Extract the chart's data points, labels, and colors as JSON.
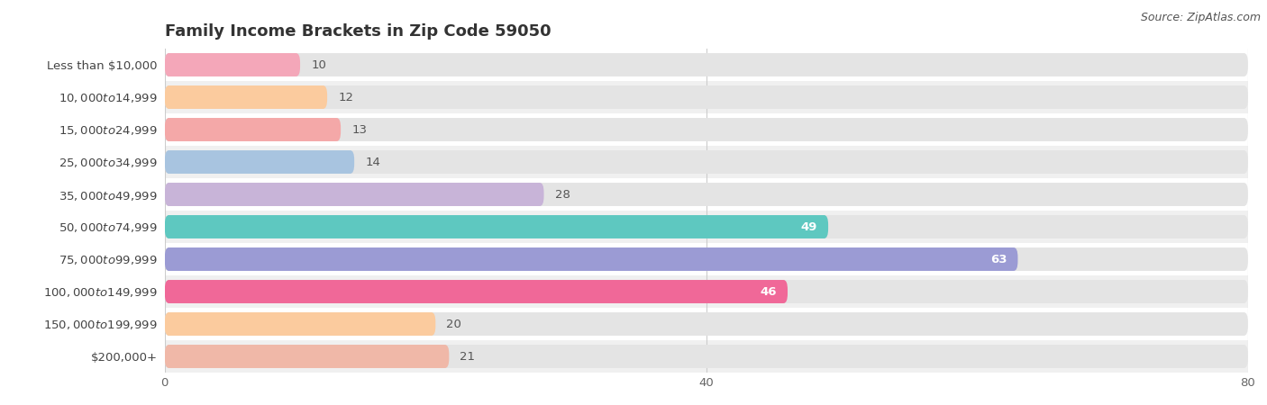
{
  "title": "Family Income Brackets in Zip Code 59050",
  "source": "Source: ZipAtlas.com",
  "categories": [
    "Less than $10,000",
    "$10,000 to $14,999",
    "$15,000 to $24,999",
    "$25,000 to $34,999",
    "$35,000 to $49,999",
    "$50,000 to $74,999",
    "$75,000 to $99,999",
    "$100,000 to $149,999",
    "$150,000 to $199,999",
    "$200,000+"
  ],
  "values": [
    10,
    12,
    13,
    14,
    28,
    49,
    63,
    46,
    20,
    21
  ],
  "bar_colors": [
    "#F4A7B9",
    "#FBCB9E",
    "#F4A8A8",
    "#A8C4E0",
    "#C8B4D8",
    "#5EC8C0",
    "#9B9BD4",
    "#F06898",
    "#FBCB9E",
    "#F0B8A8"
  ],
  "xlim": [
    0,
    80
  ],
  "xticks": [
    0,
    40,
    80
  ],
  "row_bg_colors": [
    "#ffffff",
    "#f0f0f0"
  ],
  "bar_bg_color": "#e4e4e4",
  "chart_bg": "#f7f7f7",
  "title_fontsize": 13,
  "label_fontsize": 9.5,
  "value_fontsize": 9.5,
  "source_fontsize": 9,
  "inside_value_threshold": 45
}
